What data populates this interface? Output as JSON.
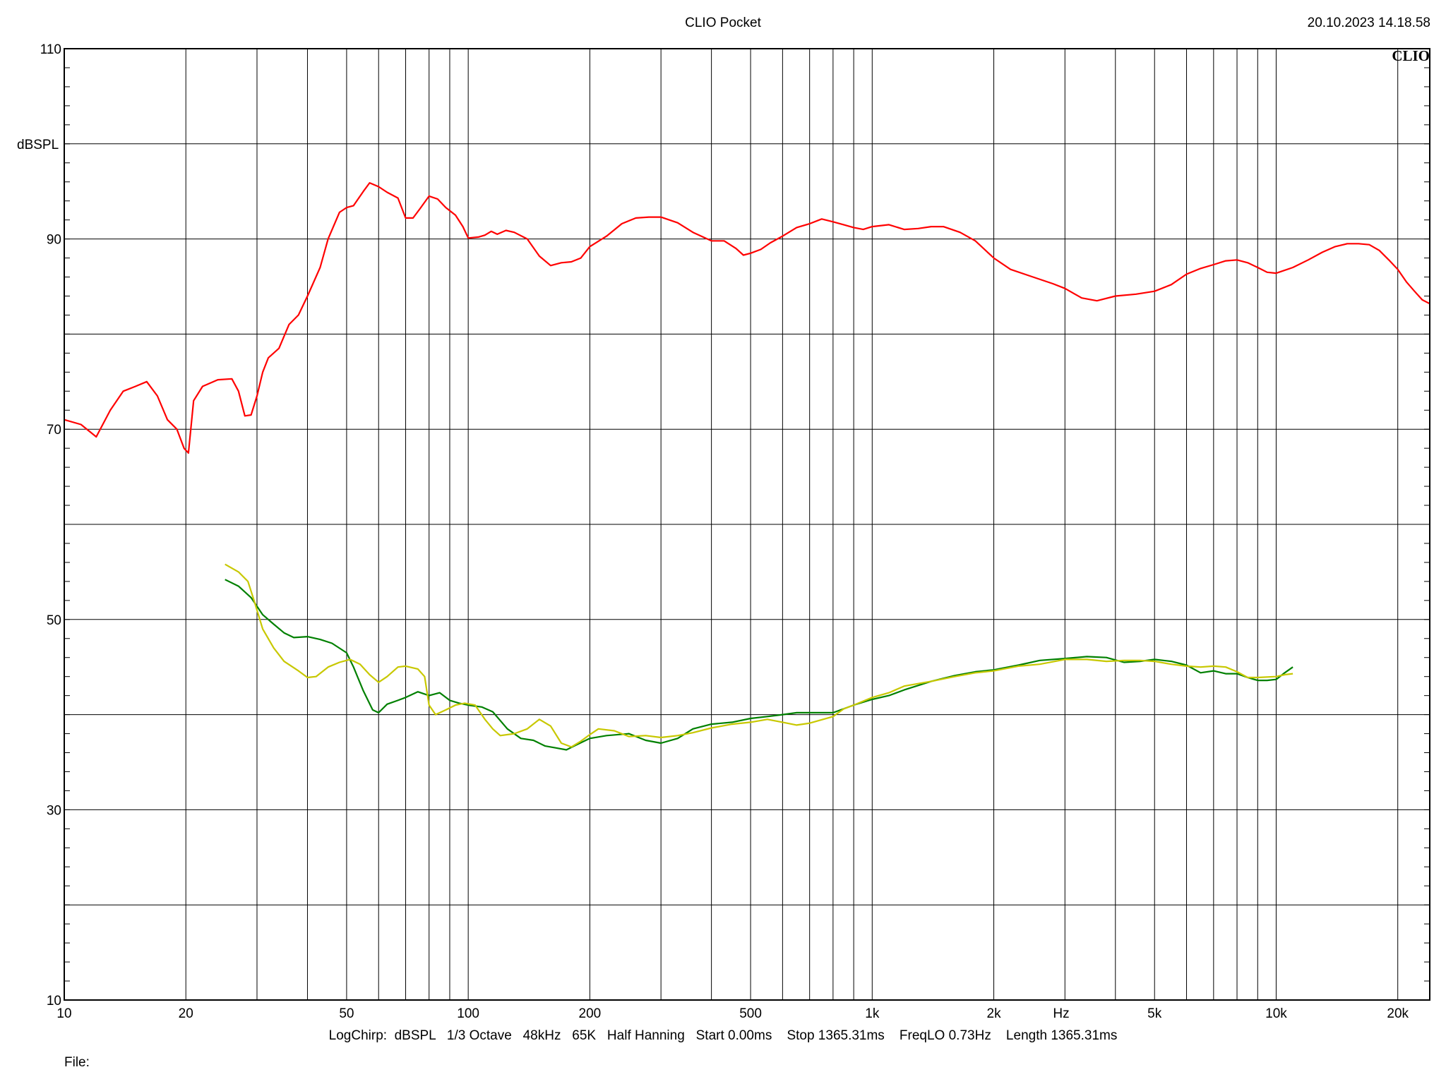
{
  "header": {
    "title": "CLIO Pocket",
    "datetime": "20.10.2023 14.18.58",
    "logo": "CLIO"
  },
  "footer": {
    "settings": "LogChirp:  dBSPL   1/3 Octave   48kHz   65K   Half Hanning   Start 0.00ms    Stop 1365.31ms    FreqLO 0.73Hz    Length 1365.31ms",
    "file_label": "File:"
  },
  "colors": {
    "background": "#ffffff",
    "grid": "#000000",
    "series_red": "#ff0000",
    "series_green": "#008000",
    "series_yellow": "#c8c800"
  },
  "chart_data": {
    "type": "line",
    "title": "CLIO Pocket",
    "xlabel": "Hz",
    "ylabel": "dBSPL",
    "x_scale": "log",
    "xlim": [
      10,
      24000
    ],
    "ylim": [
      10,
      110
    ],
    "grid": true,
    "x_ticks": [
      {
        "value": 10,
        "label": "10"
      },
      {
        "value": 20,
        "label": "20"
      },
      {
        "value": 50,
        "label": "50"
      },
      {
        "value": 100,
        "label": "100"
      },
      {
        "value": 200,
        "label": "200"
      },
      {
        "value": 500,
        "label": "500"
      },
      {
        "value": 1000,
        "label": "1k"
      },
      {
        "value": 2000,
        "label": "2k"
      },
      {
        "value": 5000,
        "label": "5k"
      },
      {
        "value": 10000,
        "label": "10k"
      },
      {
        "value": 20000,
        "label": "20k"
      }
    ],
    "x_minor": [
      30,
      40,
      60,
      70,
      80,
      90,
      300,
      400,
      600,
      700,
      800,
      900,
      3000,
      4000,
      6000,
      7000,
      8000,
      9000
    ],
    "y_ticks": [
      {
        "value": 10,
        "label": "10"
      },
      {
        "value": 30,
        "label": "30"
      },
      {
        "value": 50,
        "label": "50"
      },
      {
        "value": 70,
        "label": "70"
      },
      {
        "value": 90,
        "label": "90"
      },
      {
        "value": 110,
        "label": "110"
      }
    ],
    "y_grid": [
      20,
      30,
      40,
      50,
      60,
      70,
      80,
      90,
      100
    ],
    "series": [
      {
        "color": "#ff0000",
        "points": [
          [
            10,
            71
          ],
          [
            11,
            70.5
          ],
          [
            12,
            69.2
          ],
          [
            13,
            72
          ],
          [
            14,
            74
          ],
          [
            15,
            74.5
          ],
          [
            16,
            75
          ],
          [
            17,
            73.5
          ],
          [
            18,
            71
          ],
          [
            19,
            70
          ],
          [
            19.8,
            68
          ],
          [
            20.3,
            67.5
          ],
          [
            20.9,
            73
          ],
          [
            22,
            74.5
          ],
          [
            24,
            75.2
          ],
          [
            26,
            75.3
          ],
          [
            27,
            74
          ],
          [
            28,
            71.4
          ],
          [
            29,
            71.5
          ],
          [
            30,
            73.5
          ],
          [
            31,
            76
          ],
          [
            32,
            77.5
          ],
          [
            34,
            78.5
          ],
          [
            36,
            81
          ],
          [
            38,
            82
          ],
          [
            40,
            84
          ],
          [
            43,
            87
          ],
          [
            45,
            90
          ],
          [
            48,
            92.8
          ],
          [
            50,
            93.3
          ],
          [
            52,
            93.5
          ],
          [
            55,
            95
          ],
          [
            57,
            95.9
          ],
          [
            60,
            95.5
          ],
          [
            63,
            94.9
          ],
          [
            67,
            94.3
          ],
          [
            70,
            92.2
          ],
          [
            73,
            92.2
          ],
          [
            76,
            93.2
          ],
          [
            80,
            94.5
          ],
          [
            84,
            94.2
          ],
          [
            88,
            93.3
          ],
          [
            93,
            92.5
          ],
          [
            97,
            91.3
          ],
          [
            100,
            90.1
          ],
          [
            106,
            90.2
          ],
          [
            110,
            90.4
          ],
          [
            114,
            90.8
          ],
          [
            118,
            90.5
          ],
          [
            124,
            90.9
          ],
          [
            130,
            90.7
          ],
          [
            140,
            90
          ],
          [
            150,
            88.2
          ],
          [
            160,
            87.2
          ],
          [
            170,
            87.5
          ],
          [
            180,
            87.6
          ],
          [
            190,
            88
          ],
          [
            200,
            89.2
          ],
          [
            220,
            90.3
          ],
          [
            240,
            91.6
          ],
          [
            260,
            92.2
          ],
          [
            280,
            92.3
          ],
          [
            300,
            92.3
          ],
          [
            330,
            91.7
          ],
          [
            360,
            90.7
          ],
          [
            400,
            89.8
          ],
          [
            430,
            89.8
          ],
          [
            460,
            89
          ],
          [
            480,
            88.3
          ],
          [
            500,
            88.5
          ],
          [
            530,
            88.9
          ],
          [
            560,
            89.6
          ],
          [
            600,
            90.3
          ],
          [
            650,
            91.2
          ],
          [
            700,
            91.6
          ],
          [
            750,
            92.1
          ],
          [
            800,
            91.8
          ],
          [
            850,
            91.5
          ],
          [
            900,
            91.2
          ],
          [
            950,
            91
          ],
          [
            1000,
            91.3
          ],
          [
            1100,
            91.5
          ],
          [
            1200,
            91
          ],
          [
            1300,
            91.1
          ],
          [
            1400,
            91.3
          ],
          [
            1500,
            91.3
          ],
          [
            1650,
            90.7
          ],
          [
            1800,
            89.8
          ],
          [
            2000,
            88
          ],
          [
            2200,
            86.8
          ],
          [
            2500,
            86
          ],
          [
            2800,
            85.3
          ],
          [
            3000,
            84.8
          ],
          [
            3300,
            83.8
          ],
          [
            3600,
            83.5
          ],
          [
            4000,
            84
          ],
          [
            4500,
            84.2
          ],
          [
            5000,
            84.5
          ],
          [
            5500,
            85.2
          ],
          [
            6000,
            86.3
          ],
          [
            6500,
            86.9
          ],
          [
            7000,
            87.3
          ],
          [
            7500,
            87.7
          ],
          [
            8000,
            87.8
          ],
          [
            8500,
            87.5
          ],
          [
            9000,
            87
          ],
          [
            9500,
            86.5
          ],
          [
            10000,
            86.4
          ],
          [
            11000,
            87
          ],
          [
            12000,
            87.8
          ],
          [
            13000,
            88.6
          ],
          [
            14000,
            89.2
          ],
          [
            15000,
            89.5
          ],
          [
            16000,
            89.5
          ],
          [
            17000,
            89.4
          ],
          [
            18000,
            88.8
          ],
          [
            19000,
            87.8
          ],
          [
            20000,
            86.8
          ],
          [
            21000,
            85.5
          ],
          [
            22000,
            84.5
          ],
          [
            23000,
            83.6
          ],
          [
            24000,
            83.2
          ]
        ]
      },
      {
        "color": "#008000",
        "points": [
          [
            25,
            54.2
          ],
          [
            27,
            53.5
          ],
          [
            29,
            52.3
          ],
          [
            31,
            50.5
          ],
          [
            33,
            49.5
          ],
          [
            35,
            48.6
          ],
          [
            37,
            48.1
          ],
          [
            40,
            48.2
          ],
          [
            43,
            47.9
          ],
          [
            46,
            47.5
          ],
          [
            50,
            46.5
          ],
          [
            52,
            45
          ],
          [
            55,
            42.5
          ],
          [
            58,
            40.5
          ],
          [
            60,
            40.2
          ],
          [
            63,
            41.1
          ],
          [
            67,
            41.5
          ],
          [
            70,
            41.8
          ],
          [
            75,
            42.4
          ],
          [
            80,
            42
          ],
          [
            85,
            42.3
          ],
          [
            90,
            41.5
          ],
          [
            95,
            41.2
          ],
          [
            100,
            41
          ],
          [
            108,
            40.8
          ],
          [
            115,
            40.3
          ],
          [
            125,
            38.5
          ],
          [
            135,
            37.5
          ],
          [
            145,
            37.3
          ],
          [
            155,
            36.7
          ],
          [
            165,
            36.5
          ],
          [
            175,
            36.3
          ],
          [
            185,
            36.8
          ],
          [
            200,
            37.5
          ],
          [
            220,
            37.8
          ],
          [
            250,
            38
          ],
          [
            275,
            37.3
          ],
          [
            300,
            37
          ],
          [
            330,
            37.5
          ],
          [
            360,
            38.5
          ],
          [
            400,
            39
          ],
          [
            450,
            39.2
          ],
          [
            500,
            39.6
          ],
          [
            550,
            39.8
          ],
          [
            600,
            40
          ],
          [
            650,
            40.2
          ],
          [
            700,
            40.2
          ],
          [
            800,
            40.2
          ],
          [
            900,
            41
          ],
          [
            1000,
            41.6
          ],
          [
            1100,
            42
          ],
          [
            1200,
            42.6
          ],
          [
            1400,
            43.5
          ],
          [
            1600,
            44.1
          ],
          [
            1800,
            44.5
          ],
          [
            2000,
            44.7
          ],
          [
            2300,
            45.2
          ],
          [
            2600,
            45.7
          ],
          [
            3000,
            45.9
          ],
          [
            3400,
            46.1
          ],
          [
            3800,
            46
          ],
          [
            4200,
            45.5
          ],
          [
            4600,
            45.6
          ],
          [
            5000,
            45.8
          ],
          [
            5500,
            45.6
          ],
          [
            6000,
            45.2
          ],
          [
            6500,
            44.4
          ],
          [
            7000,
            44.6
          ],
          [
            7500,
            44.3
          ],
          [
            8000,
            44.3
          ],
          [
            8500,
            43.9
          ],
          [
            9000,
            43.6
          ],
          [
            9500,
            43.6
          ],
          [
            10000,
            43.7
          ],
          [
            10500,
            44.4
          ],
          [
            11000,
            45
          ]
        ]
      },
      {
        "color": "#c8c800",
        "points": [
          [
            25,
            55.8
          ],
          [
            27,
            55
          ],
          [
            28.5,
            54
          ],
          [
            29.5,
            52
          ],
          [
            31,
            49
          ],
          [
            33,
            47
          ],
          [
            35,
            45.6
          ],
          [
            38,
            44.6
          ],
          [
            40,
            43.9
          ],
          [
            42,
            44
          ],
          [
            45,
            45
          ],
          [
            48,
            45.5
          ],
          [
            51,
            45.8
          ],
          [
            54,
            45.3
          ],
          [
            57,
            44.2
          ],
          [
            60,
            43.4
          ],
          [
            63,
            44
          ],
          [
            67,
            45
          ],
          [
            70,
            45.1
          ],
          [
            75,
            44.8
          ],
          [
            78,
            44
          ],
          [
            80,
            41
          ],
          [
            83,
            40
          ],
          [
            88,
            40.5
          ],
          [
            93,
            41
          ],
          [
            98,
            41.2
          ],
          [
            104,
            41
          ],
          [
            110,
            39.5
          ],
          [
            115,
            38.5
          ],
          [
            120,
            37.8
          ],
          [
            130,
            38
          ],
          [
            140,
            38.5
          ],
          [
            150,
            39.5
          ],
          [
            160,
            38.8
          ],
          [
            170,
            37
          ],
          [
            180,
            36.6
          ],
          [
            190,
            37.2
          ],
          [
            200,
            37.9
          ],
          [
            210,
            38.5
          ],
          [
            230,
            38.3
          ],
          [
            250,
            37.7
          ],
          [
            275,
            37.8
          ],
          [
            300,
            37.6
          ],
          [
            330,
            37.8
          ],
          [
            360,
            38.1
          ],
          [
            400,
            38.6
          ],
          [
            450,
            39
          ],
          [
            500,
            39.2
          ],
          [
            550,
            39.5
          ],
          [
            600,
            39.2
          ],
          [
            650,
            38.9
          ],
          [
            700,
            39.1
          ],
          [
            800,
            39.8
          ],
          [
            850,
            40.6
          ],
          [
            900,
            41
          ],
          [
            1000,
            41.8
          ],
          [
            1100,
            42.3
          ],
          [
            1200,
            43
          ],
          [
            1400,
            43.5
          ],
          [
            1600,
            44
          ],
          [
            1800,
            44.4
          ],
          [
            2000,
            44.6
          ],
          [
            2300,
            45.1
          ],
          [
            2600,
            45.3
          ],
          [
            3000,
            45.8
          ],
          [
            3400,
            45.8
          ],
          [
            3800,
            45.6
          ],
          [
            4200,
            45.7
          ],
          [
            4600,
            45.7
          ],
          [
            5000,
            45.6
          ],
          [
            5500,
            45.3
          ],
          [
            6000,
            45.1
          ],
          [
            6500,
            45
          ],
          [
            7000,
            45.1
          ],
          [
            7500,
            45
          ],
          [
            8000,
            44.5
          ],
          [
            8500,
            43.9
          ],
          [
            9000,
            43.9
          ],
          [
            10000,
            44
          ],
          [
            10500,
            44.2
          ],
          [
            11000,
            44.3
          ]
        ]
      }
    ]
  }
}
